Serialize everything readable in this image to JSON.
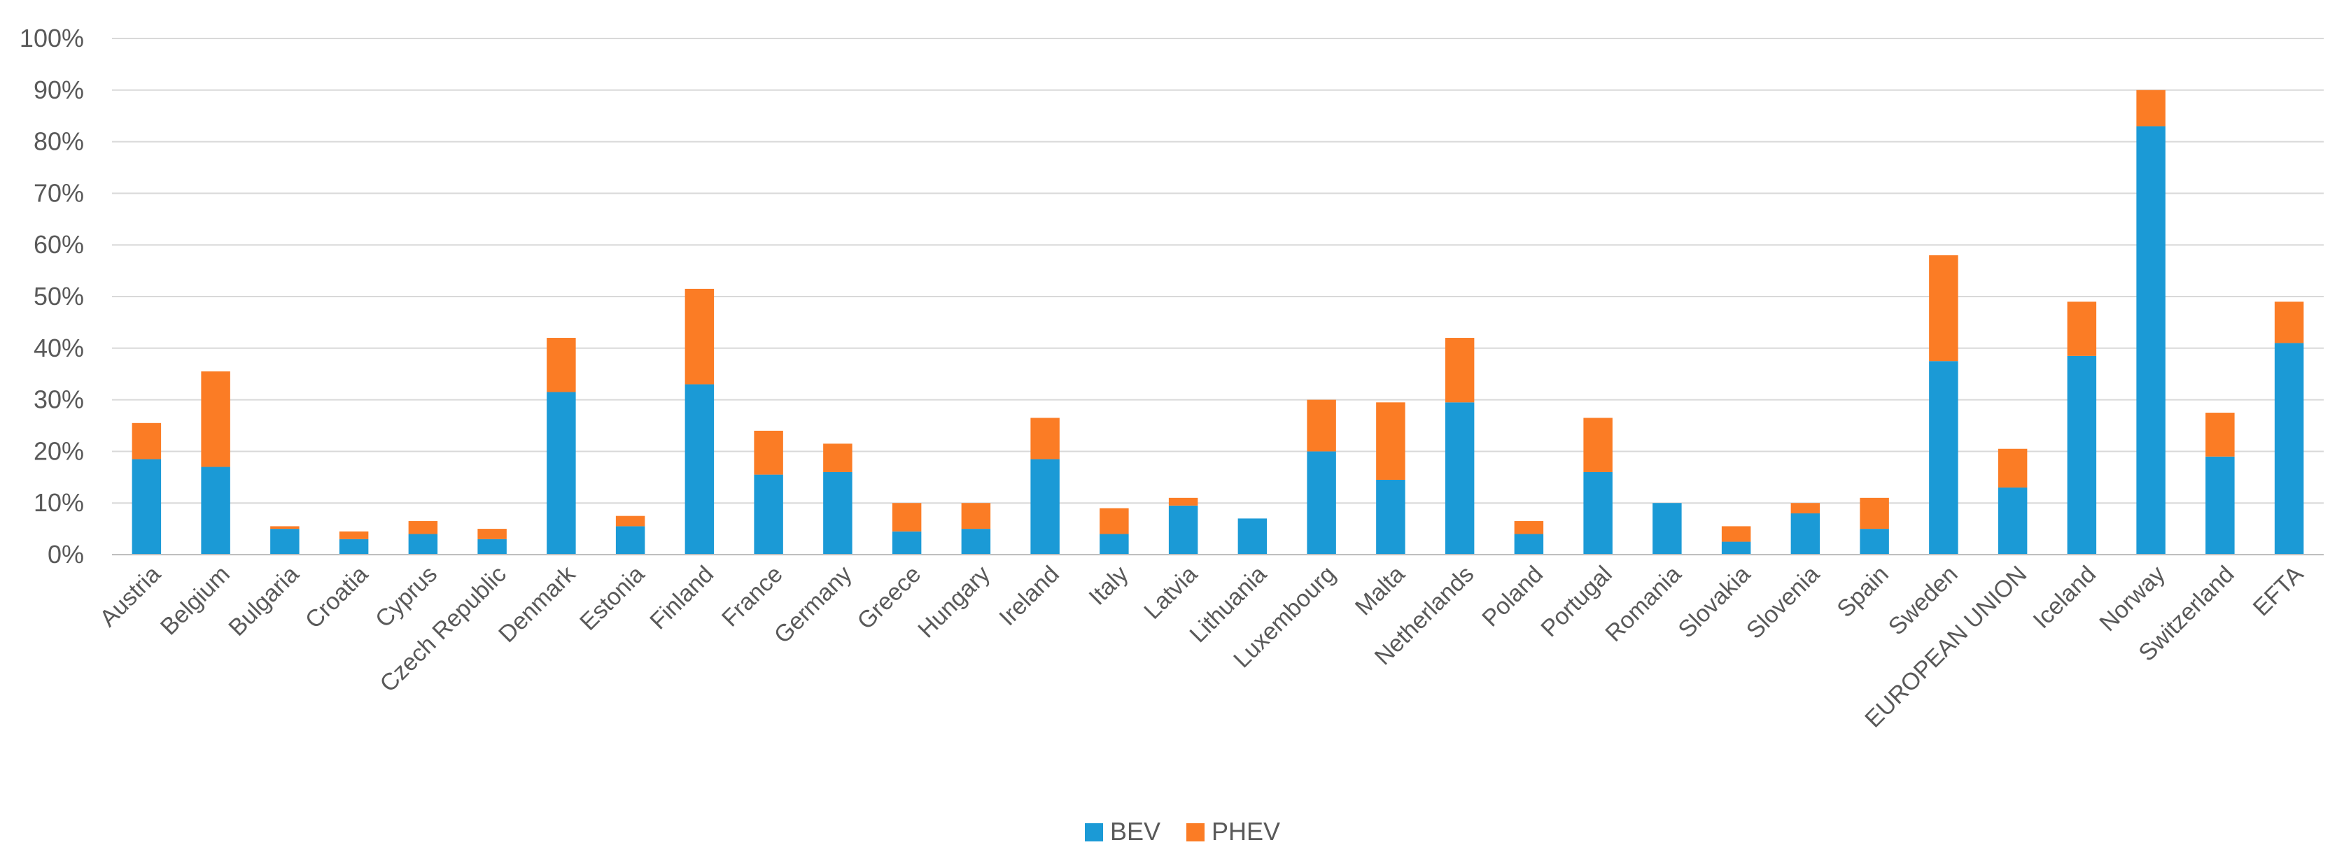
{
  "chart_data": {
    "type": "bar",
    "stacked": true,
    "categories": [
      "Austria",
      "Belgium",
      "Bulgaria",
      "Croatia",
      "Cyprus",
      "Czech Republic",
      "Denmark",
      "Estonia",
      "Finland",
      "France",
      "Germany",
      "Greece",
      "Hungary",
      "Ireland",
      "Italy",
      "Latvia",
      "Lithuania",
      "Luxembourg",
      "Malta",
      "Netherlands",
      "Poland",
      "Portugal",
      "Romania",
      "Slovakia",
      "Slovenia",
      "Spain",
      "Sweden",
      "EUROPEAN UNION",
      "Iceland",
      "Norway",
      "Switzerland",
      "EFTA"
    ],
    "series": [
      {
        "name": "BEV",
        "color": "#1b9ad6",
        "values": [
          18.5,
          17,
          5,
          3,
          4,
          3,
          31.5,
          5.5,
          33,
          15.5,
          16,
          4.5,
          5,
          18.5,
          4,
          9.5,
          7,
          20,
          14.5,
          29.5,
          4,
          16,
          10,
          2.5,
          8,
          5,
          37.5,
          13,
          38.5,
          83,
          19,
          41
        ]
      },
      {
        "name": "PHEV",
        "color": "#fb7c25",
        "values": [
          7,
          18.5,
          0.5,
          1.5,
          2.5,
          2,
          10.5,
          2,
          18.5,
          8.5,
          5.5,
          5.5,
          5,
          8,
          5,
          1.5,
          0,
          10,
          15,
          12.5,
          2.5,
          10.5,
          0,
          3,
          2,
          6,
          20.5,
          7.5,
          10.5,
          7,
          8.5,
          8
        ]
      }
    ],
    "ylim": [
      0,
      100
    ],
    "yticks": [
      "0%",
      "10%",
      "20%",
      "30%",
      "40%",
      "50%",
      "60%",
      "70%",
      "80%",
      "90%",
      "100%"
    ],
    "title": "",
    "xlabel": "",
    "ylabel": "",
    "grid": true,
    "legend_position": "bottom-center"
  }
}
